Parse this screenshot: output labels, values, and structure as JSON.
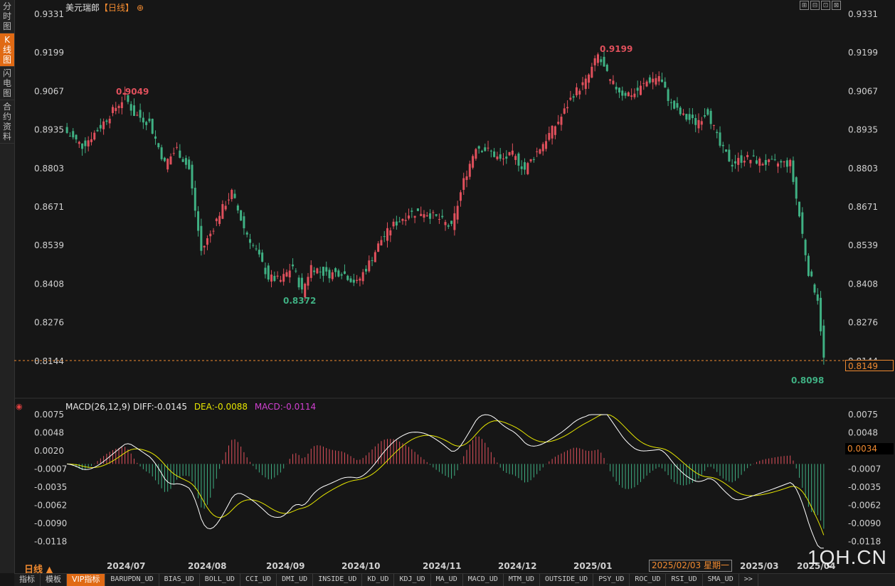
{
  "left_tabs": [
    {
      "label": "分时图",
      "active": false
    },
    {
      "label": "K线图",
      "active": true
    },
    {
      "label": "闪电图",
      "active": false
    },
    {
      "label": "合约资料",
      "active": false
    }
  ],
  "header": {
    "symbol": "美元瑞郎",
    "period": "【日线】",
    "add_icon": "⊕"
  },
  "corner_icons": [
    "⊞",
    "⊟",
    "⊡",
    "⊠"
  ],
  "price_axis_labels": [
    "0.9331",
    "0.9199",
    "0.9067",
    "0.8935",
    "0.8803",
    "0.8671",
    "0.8539",
    "0.8408",
    "0.8276",
    "0.8144"
  ],
  "macd_axis_labels": [
    "0.0075",
    "0.0048",
    "0.0020",
    "-0.0007",
    "-0.0035",
    "-0.0062",
    "-0.0090",
    "-0.0118"
  ],
  "date_labels": [
    "2024/07",
    "2024/08",
    "2024/09",
    "2024/10",
    "2024/11",
    "2024/12",
    "2025/01",
    "2025/03",
    "2025/04"
  ],
  "annotations": {
    "high1": "0.9049",
    "high2": "0.9199",
    "low1": "0.8372",
    "low2": "0.8098"
  },
  "current_price": "0.8149",
  "current_macd": "0.0034",
  "macd_legend": {
    "name": "MACD(26,12,9)",
    "diff": "DIFF:-0.0145",
    "dea": "DEA:-0.0088",
    "macd": "MACD:-0.0114"
  },
  "crosshair_date": "2025/02/03 星期一",
  "period_selector": "日线 ▲",
  "bottom_tabs": [
    {
      "label": "指标",
      "active": false
    },
    {
      "label": "模板",
      "active": false
    },
    {
      "label": "VIP指标",
      "active": true
    },
    {
      "label": "BARUPDN_UD",
      "active": false
    },
    {
      "label": "BIAS_UD",
      "active": false
    },
    {
      "label": "BOLL_UD",
      "active": false
    },
    {
      "label": "CCI_UD",
      "active": false
    },
    {
      "label": "DMI_UD",
      "active": false
    },
    {
      "label": "INSIDE_UD",
      "active": false
    },
    {
      "label": "KD_UD",
      "active": false
    },
    {
      "label": "KDJ_UD",
      "active": false
    },
    {
      "label": "MA_UD",
      "active": false
    },
    {
      "label": "MACD_UD",
      "active": false
    },
    {
      "label": "MTM_UD",
      "active": false
    },
    {
      "label": "OUTSIDE_UD",
      "active": false
    },
    {
      "label": "PSY_UD",
      "active": false
    },
    {
      "label": "ROC_UD",
      "active": false
    },
    {
      "label": "RSI_UD",
      "active": false
    },
    {
      "label": "SMA_UD",
      "active": false
    },
    {
      "label": ">>",
      "active": false
    }
  ],
  "watermark": "1QH.CN",
  "colors": {
    "up": "#e0505c",
    "down": "#3fb083",
    "diff": "#ffffff",
    "dea": "#e6e600",
    "accent": "#e06a14"
  },
  "chart_data": {
    "type": "candlestick",
    "price_range": [
      0.8098,
      0.9331
    ],
    "close_path": [
      [
        0,
        0.8925
      ],
      [
        5,
        0.888
      ],
      [
        10,
        0.8935
      ],
      [
        15,
        0.9
      ],
      [
        19,
        0.9049
      ],
      [
        22,
        0.899
      ],
      [
        27,
        0.896
      ],
      [
        32,
        0.882
      ],
      [
        36,
        0.887
      ],
      [
        40,
        0.88
      ],
      [
        44,
        0.852
      ],
      [
        47,
        0.858
      ],
      [
        50,
        0.865
      ],
      [
        54,
        0.872
      ],
      [
        58,
        0.86
      ],
      [
        62,
        0.852
      ],
      [
        66,
        0.843
      ],
      [
        70,
        0.842
      ],
      [
        74,
        0.847
      ],
      [
        77,
        0.838
      ],
      [
        80,
        0.847
      ],
      [
        85,
        0.844
      ],
      [
        90,
        0.845
      ],
      [
        95,
        0.841
      ],
      [
        99,
        0.848
      ],
      [
        103,
        0.856
      ],
      [
        107,
        0.861
      ],
      [
        112,
        0.865
      ],
      [
        117,
        0.8655
      ],
      [
        122,
        0.863
      ],
      [
        126,
        0.86
      ],
      [
        130,
        0.876
      ],
      [
        134,
        0.888
      ],
      [
        139,
        0.886
      ],
      [
        142,
        0.883
      ],
      [
        146,
        0.885
      ],
      [
        150,
        0.88
      ],
      [
        154,
        0.886
      ],
      [
        158,
        0.892
      ],
      [
        162,
        0.898
      ],
      [
        166,
        0.906
      ],
      [
        170,
        0.91
      ],
      [
        174,
        0.919
      ],
      [
        178,
        0.91
      ],
      [
        182,
        0.906
      ],
      [
        186,
        0.906
      ],
      [
        190,
        0.91
      ],
      [
        194,
        0.912
      ],
      [
        198,
        0.902
      ],
      [
        202,
        0.898
      ],
      [
        206,
        0.896
      ],
      [
        210,
        0.9
      ],
      [
        214,
        0.888
      ],
      [
        218,
        0.882
      ],
      [
        222,
        0.884
      ],
      [
        226,
        0.883
      ],
      [
        230,
        0.882
      ],
      [
        234,
        0.882
      ],
      [
        237,
        0.882
      ],
      [
        240,
        0.864
      ],
      [
        243,
        0.845
      ],
      [
        246,
        0.836
      ],
      [
        248,
        0.815
      ]
    ],
    "macd": {
      "diff_end": -0.0145,
      "dea_end": -0.0088,
      "hist_end": -0.0114,
      "range": [
        -0.0118,
        0.0075
      ]
    }
  }
}
